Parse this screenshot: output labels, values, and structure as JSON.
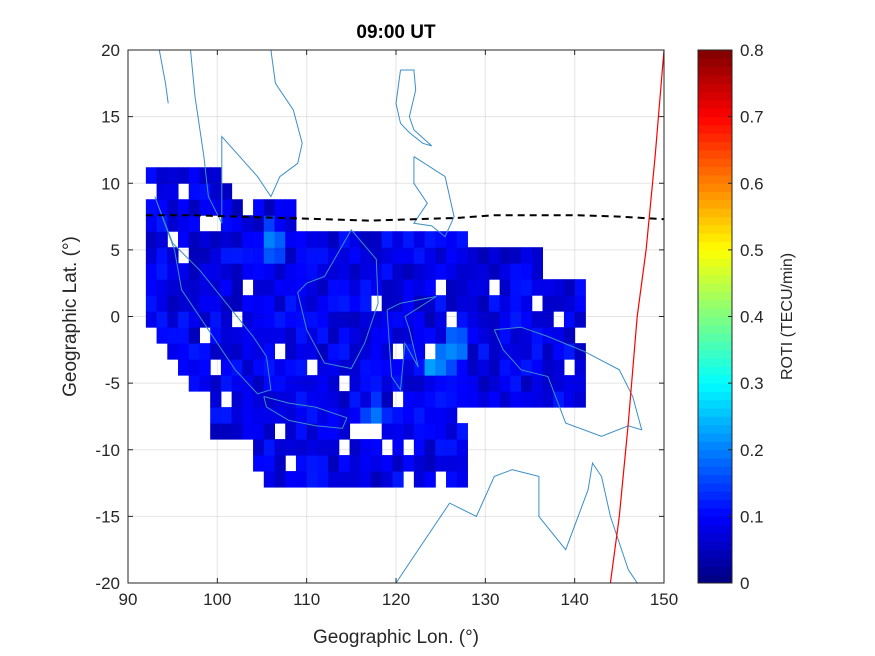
{
  "chart_data": {
    "type": "heatmap",
    "title": "09:00 UT",
    "xlabel": "Geographic Lon. (°)",
    "ylabel": "Geographic Lat. (°)",
    "xlim": [
      90,
      150
    ],
    "ylim": [
      -20,
      20
    ],
    "xticks": [
      90,
      100,
      110,
      120,
      130,
      140,
      150
    ],
    "yticks": [
      -20,
      -15,
      -10,
      -5,
      0,
      5,
      10,
      15,
      20
    ],
    "grid": true,
    "colorbar": {
      "label": "ROTI (TECU/min)",
      "range": [
        0,
        0.8
      ],
      "ticks": [
        0,
        0.1,
        0.2,
        0.3,
        0.4,
        0.5,
        0.6,
        0.7,
        0.8
      ],
      "colormap": "jet"
    },
    "series": [
      {
        "type": "dashed-line",
        "color": "#000000",
        "points": [
          [
            92,
            7.6
          ],
          [
            97,
            7.6
          ],
          [
            102,
            7.5
          ],
          [
            107,
            7.4
          ],
          [
            112,
            7.3
          ],
          [
            117,
            7.2
          ],
          [
            122,
            7.3
          ],
          [
            127,
            7.4
          ],
          [
            131,
            7.6
          ],
          [
            135,
            7.6
          ],
          [
            140,
            7.6
          ],
          [
            145,
            7.5
          ],
          [
            150,
            7.3
          ]
        ]
      },
      {
        "type": "line",
        "color": "#ff0000",
        "points": [
          [
            144,
            -20
          ],
          [
            145,
            -15
          ],
          [
            146,
            -8
          ],
          [
            147,
            0
          ],
          [
            148,
            5
          ],
          [
            149,
            12
          ],
          [
            150,
            20
          ]
        ]
      }
    ],
    "cells": [
      {
        "region": "main-blob",
        "value": 0.08
      },
      {
        "region": "hotspot",
        "lon": 105.5,
        "lat": 5,
        "value": 0.22
      },
      {
        "region": "hotspot",
        "lon": 123.5,
        "lat": -4,
        "value": 0.25
      },
      {
        "region": "hotspot",
        "lon": 126,
        "lat": -3,
        "value": 0.23
      },
      {
        "region": "hotspot",
        "lon": 117,
        "lat": -8,
        "value": 0.2
      }
    ]
  }
}
